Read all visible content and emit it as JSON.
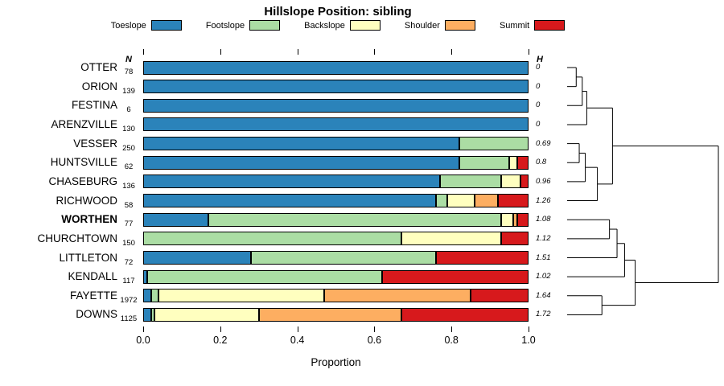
{
  "chart_data": {
    "type": "bar",
    "stacked": true,
    "orientation": "horizontal",
    "title": "Hillslope Position: sibling",
    "xlabel": "Proportion",
    "xlim": [
      0,
      1
    ],
    "x_ticks": [
      "0.0",
      "0.2",
      "0.4",
      "0.6",
      "0.8",
      "1.0"
    ],
    "grid": false,
    "legend_position": "top",
    "n_column_header": "N",
    "h_column_header": "H",
    "categories": [
      "OTTER",
      "ORION",
      "FESTINA",
      "ARENZVILLE",
      "VESSER",
      "HUNTSVILLE",
      "CHASEBURG",
      "RICHWOOD",
      "WORTHEN",
      "CHURCHTOWN",
      "LITTLETON",
      "KENDALL",
      "FAYETTE",
      "DOWNS"
    ],
    "bold_categories": [
      "WORTHEN"
    ],
    "n_values": [
      78,
      139,
      6,
      130,
      250,
      62,
      136,
      58,
      77,
      150,
      72,
      117,
      1972,
      1125
    ],
    "h_values": [
      "0",
      "0",
      "0",
      "0",
      "0.69",
      "0.8",
      "0.96",
      "1.26",
      "1.08",
      "1.12",
      "1.51",
      "1.02",
      "1.64",
      "1.72"
    ],
    "series": [
      {
        "name": "Toeslope",
        "color": "#2B83BA",
        "values": [
          1,
          1,
          1,
          1,
          0.82,
          0.82,
          0.77,
          0.76,
          0.17,
          0,
          0.28,
          0.01,
          0.02,
          0.02
        ]
      },
      {
        "name": "Footslope",
        "color": "#ABDDA4",
        "values": [
          0,
          0,
          0,
          0,
          0.18,
          0.13,
          0.16,
          0.03,
          0.76,
          0.67,
          0.48,
          0.61,
          0.02,
          0.01
        ]
      },
      {
        "name": "Backslope",
        "color": "#FFFFBF",
        "values": [
          0,
          0,
          0,
          0,
          0,
          0.02,
          0.05,
          0.07,
          0.03,
          0.26,
          0,
          0,
          0.43,
          0.27
        ]
      },
      {
        "name": "Shoulder",
        "color": "#FDAE61",
        "values": [
          0,
          0,
          0,
          0,
          0,
          0,
          0,
          0.06,
          0.01,
          0,
          0,
          0,
          0.38,
          0.37
        ]
      },
      {
        "name": "Summit",
        "color": "#D7191C",
        "values": [
          0,
          0,
          0,
          0,
          0,
          0.03,
          0.02,
          0.08,
          0.03,
          0.07,
          0.24,
          0.38,
          0.15,
          0.33
        ]
      }
    ],
    "dendrogram": {
      "orientation": "right-margin",
      "tree": {
        "h": 1.0,
        "c": [
          {
            "h": 0.3,
            "c": [
              {
                "h": 0.13,
                "c": [
                  {
                    "h": 0.1,
                    "c": [
                      {
                        "h": 0.06,
                        "c": [
                          {
                            "leaf": "OTTER"
                          },
                          {
                            "leaf": "ORION"
                          }
                        ]
                      },
                      {
                        "leaf": "FESTINA"
                      }
                    ]
                  },
                  {
                    "leaf": "ARENZVILLE"
                  }
                ]
              },
              {
                "h": 0.2,
                "c": [
                  {
                    "h": 0.12,
                    "c": [
                      {
                        "h": 0.08,
                        "c": [
                          {
                            "leaf": "VESSER"
                          },
                          {
                            "leaf": "HUNTSVILLE"
                          }
                        ]
                      },
                      {
                        "leaf": "CHASEBURG"
                      }
                    ]
                  },
                  {
                    "leaf": "RICHWOOD"
                  }
                ]
              }
            ]
          },
          {
            "h": 0.45,
            "c": [
              {
                "h": 0.38,
                "c": [
                  {
                    "h": 0.33,
                    "c": [
                      {
                        "h": 0.28,
                        "c": [
                          {
                            "leaf": "WORTHEN"
                          },
                          {
                            "leaf": "CHURCHTOWN"
                          }
                        ]
                      },
                      {
                        "leaf": "LITTLETON"
                      }
                    ]
                  },
                  {
                    "leaf": "KENDALL"
                  }
                ]
              },
              {
                "h": 0.23,
                "c": [
                  {
                    "leaf": "FAYETTE"
                  },
                  {
                    "leaf": "DOWNS"
                  }
                ]
              }
            ]
          }
        ]
      }
    }
  },
  "colors": {
    "bar_border": "#000000",
    "text": "#000000",
    "background": "#FFFFFF",
    "dendrogram_line": "#000000"
  }
}
